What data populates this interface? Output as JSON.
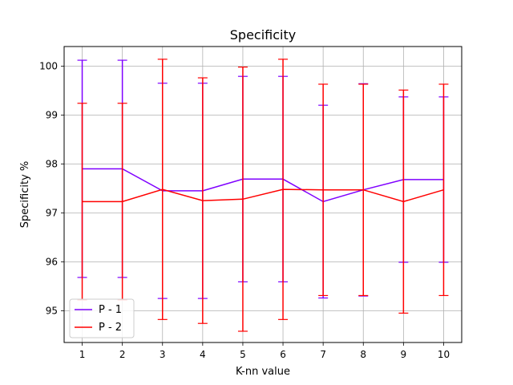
{
  "chart_data": {
    "type": "line",
    "title": "Specificity",
    "xlabel": "K-nn value",
    "ylabel": "Specificity %",
    "x": [
      1,
      2,
      3,
      4,
      5,
      6,
      7,
      8,
      9,
      10
    ],
    "xticks": [
      "1",
      "2",
      "3",
      "4",
      "5",
      "6",
      "7",
      "8",
      "9",
      "10"
    ],
    "yticks": [
      "95",
      "96",
      "97",
      "98",
      "99",
      "100"
    ],
    "xlim": [
      0.55,
      10.45
    ],
    "ylim": [
      94.35,
      100.4
    ],
    "grid": true,
    "legend_position": "lower-left",
    "series": [
      {
        "name": "P - 1",
        "color": "#7f00ff",
        "values": [
          97.9,
          97.9,
          97.45,
          97.45,
          97.69,
          97.69,
          97.23,
          97.47,
          97.68,
          97.68
        ],
        "error": [
          2.22,
          2.22,
          2.2,
          2.2,
          2.1,
          2.1,
          1.97,
          2.17,
          1.69,
          1.69
        ]
      },
      {
        "name": "P - 2",
        "color": "#ff0000",
        "values": [
          97.23,
          97.23,
          97.48,
          97.25,
          97.28,
          97.48,
          97.47,
          97.47,
          97.23,
          97.47
        ],
        "error": [
          2.01,
          2.01,
          2.66,
          2.51,
          2.7,
          2.66,
          2.16,
          2.16,
          2.28,
          2.16
        ]
      }
    ]
  }
}
